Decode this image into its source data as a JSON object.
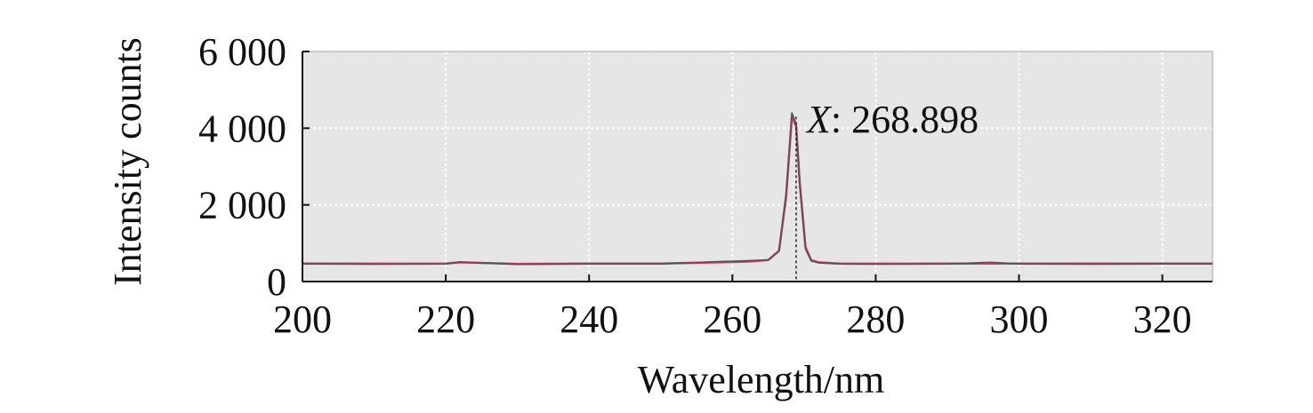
{
  "chart_data": {
    "type": "line",
    "title": "",
    "xlabel": "Wavelength/nm",
    "ylabel": "Intensity counts",
    "xlim": [
      200,
      327
    ],
    "ylim": [
      0,
      6000
    ],
    "x_ticks": [
      200,
      220,
      240,
      260,
      280,
      300,
      320
    ],
    "x_tick_labels": [
      "200",
      "220",
      "240",
      "260",
      "280",
      "300",
      "320"
    ],
    "y_ticks": [
      0,
      2000,
      4000,
      6000
    ],
    "y_tick_labels": [
      "0",
      "2 000",
      "4 000",
      "6 000"
    ],
    "grid": true,
    "plot_background": "#e6e6e6",
    "colors": {
      "red_series": "#e8336b",
      "gray_series": "#555555",
      "grid": "#ffffff"
    },
    "series": [
      {
        "color": "red",
        "x": [
          200,
          210,
          220,
          222,
          230,
          240,
          250,
          258,
          262,
          265,
          266.5,
          267.5,
          268.3,
          268.9,
          269.4,
          270.2,
          271,
          272,
          275,
          280,
          290,
          300,
          310,
          320,
          327
        ],
        "y": [
          470,
          465,
          470,
          500,
          460,
          470,
          470,
          500,
          520,
          560,
          800,
          2200,
          4300,
          4050,
          2600,
          900,
          560,
          500,
          470,
          465,
          470,
          470,
          470,
          470,
          470
        ]
      },
      {
        "color": "gray",
        "x": [
          200,
          210,
          220,
          222,
          230,
          240,
          250,
          258,
          262,
          265,
          266.5,
          267.5,
          268.3,
          268.9,
          269.4,
          270.2,
          271,
          272,
          275,
          280,
          290,
          296,
          300,
          310,
          320,
          327
        ],
        "y": [
          460,
          455,
          460,
          510,
          450,
          460,
          460,
          520,
          540,
          560,
          800,
          2300,
          4400,
          4100,
          2500,
          850,
          540,
          490,
          460,
          455,
          460,
          500,
          460,
          455,
          460,
          460
        ]
      }
    ],
    "annotation": {
      "prefix": "X",
      "separator": ": ",
      "value": "268.898",
      "x": 268.898
    }
  }
}
